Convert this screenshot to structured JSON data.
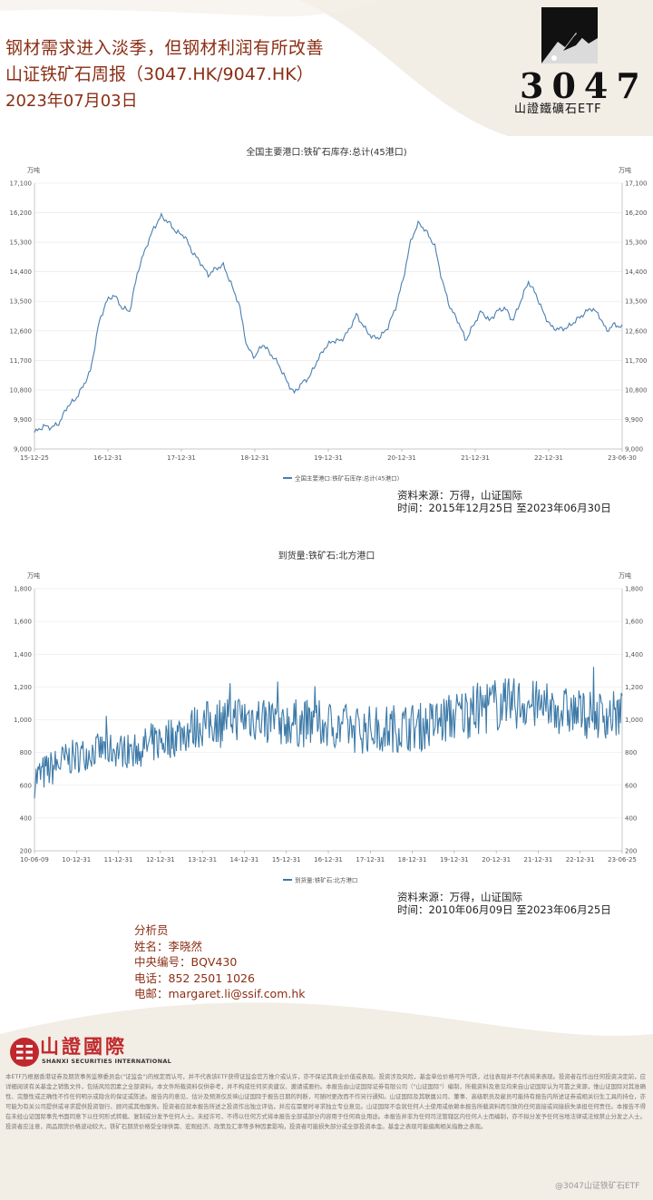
{
  "header": {
    "title": "钢材需求进入淡季，但钢材利润有所改善",
    "subtitle": "山证铁矿石周报（3047.HK/9047.HK）",
    "date": "2023年07月03日"
  },
  "logo": {
    "code": "3047",
    "name": "山證鐵礦石ETF"
  },
  "chart_data": [
    {
      "type": "line",
      "title": "全国主要港口:铁矿石库存:总计(45港口)",
      "unit_left": "万吨",
      "unit_right": "万吨",
      "ylim": [
        9000,
        17100
      ],
      "yticks": [
        "17,100",
        "16,200",
        "15,300",
        "14,400",
        "13,500",
        "12,600",
        "11,700",
        "10,800",
        "9,900",
        "9,000"
      ],
      "xticks": [
        "15-12-25",
        "16-12-31",
        "17-12-31",
        "18-12-31",
        "19-12-31",
        "20-12-31",
        "21-12-31",
        "22-12-31",
        "23-06-30"
      ],
      "legend": "全国主要港口:铁矿石库存:总计(45港口)",
      "series": [
        {
          "name": "全国主要港口:铁矿石库存:总计(45港口)",
          "color": "#4a7fb0",
          "x": [
            2015.98,
            2016.1,
            2016.2,
            2016.3,
            2016.4,
            2016.5,
            2016.6,
            2016.7,
            2016.8,
            2016.9,
            2017.0,
            2017.1,
            2017.2,
            2017.3,
            2017.4,
            2017.5,
            2017.6,
            2017.7,
            2017.8,
            2017.9,
            2018.0,
            2018.1,
            2018.2,
            2018.3,
            2018.4,
            2018.5,
            2018.6,
            2018.7,
            2018.8,
            2018.9,
            2019.0,
            2019.1,
            2019.2,
            2019.3,
            2019.4,
            2019.5,
            2019.6,
            2019.7,
            2019.8,
            2019.9,
            2020.0,
            2020.1,
            2020.2,
            2020.3,
            2020.4,
            2020.5,
            2020.6,
            2020.7,
            2020.8,
            2020.9,
            2021.0,
            2021.1,
            2021.2,
            2021.3,
            2021.4,
            2021.5,
            2021.6,
            2021.7,
            2021.8,
            2021.9,
            2022.0,
            2022.1,
            2022.2,
            2022.3,
            2022.4,
            2022.5,
            2022.6,
            2022.7,
            2022.8,
            2022.9,
            2023.0,
            2023.1,
            2023.2,
            2023.3,
            2023.4,
            2023.5
          ],
          "values": [
            9500,
            9700,
            9650,
            9800,
            10300,
            10500,
            10900,
            11400,
            12800,
            13500,
            13700,
            13300,
            13200,
            14400,
            15100,
            15700,
            16100,
            15900,
            15600,
            15500,
            15000,
            14700,
            14300,
            14500,
            14600,
            14000,
            13400,
            12100,
            11800,
            12200,
            11900,
            11600,
            11100,
            10700,
            11000,
            11200,
            11700,
            12100,
            12300,
            12300,
            12600,
            13100,
            12700,
            12400,
            12400,
            12700,
            13300,
            14200,
            15400,
            15900,
            15600,
            15200,
            14100,
            13300,
            12900,
            12300,
            12800,
            13200,
            12900,
            13200,
            13300,
            12900,
            13500,
            14100,
            13700,
            13100,
            12700,
            12650,
            12700,
            12900,
            13100,
            13300,
            13100,
            12600,
            12800,
            12700
          ]
        }
      ]
    },
    {
      "type": "line",
      "title": "到货量:铁矿石:北方港口",
      "unit_left": "万吨",
      "unit_right": "万吨",
      "ylim": [
        200,
        1800
      ],
      "yticks": [
        "1,800",
        "1,600",
        "1,400",
        "1,200",
        "1,000",
        "800",
        "600",
        "400",
        "200"
      ],
      "xticks": [
        "10-06-09",
        "10-12-31",
        "11-12-31",
        "12-12-31",
        "13-12-31",
        "14-12-31",
        "15-12-31",
        "16-12-31",
        "17-12-31",
        "18-12-31",
        "19-12-31",
        "20-12-31",
        "21-12-31",
        "22-12-31",
        "23-06-25"
      ],
      "legend": "到货量:铁矿石:北方港口",
      "series": [
        {
          "name": "到货量:铁矿石:北方港口",
          "color": "#3d7aa8",
          "x_start": 2010.44,
          "x_end": 2023.49,
          "base": [
            640,
            760,
            820,
            810,
            880,
            960,
            1020,
            1010,
            980,
            970,
            940,
            950,
            960,
            1030,
            1090,
            1100,
            1060,
            1030,
            1030
          ],
          "amplitude": [
            120,
            110,
            100,
            110,
            130,
            140,
            150,
            150,
            150,
            150,
            150,
            150,
            150,
            160,
            170,
            160,
            150,
            150,
            150
          ]
        }
      ]
    }
  ],
  "sources": [
    {
      "line1": "资料来源：万得，山证国际",
      "line2": "时间：2015年12月25日 至2023年06月30日"
    },
    {
      "line1": "资料来源：万得，山证国际",
      "line2": "时间：2010年06月09日 至2023年06月25日"
    }
  ],
  "analyst": {
    "heading": "分析员",
    "name": "姓名：李晓然",
    "ce_no": "中央编号：BQV430",
    "phone": "电话：852 2501 1026",
    "email": "电邮：margaret.li@ssif.com.hk"
  },
  "brand": {
    "name": "山證國際",
    "en": "SHANXI SECURITIES INTERNATIONAL"
  },
  "disclaimer": "本ETF乃根据香港证券及期货事务监察委员会(\"证监会\")的规定而认可，并不代表该ETF获得证监会官方推介或认许，亦不保证其商业价值或表现。投资涉及风险，基金单位价格可升可跌，过往表现并不代表将来表现。投资者在作出任何投资决定前，应详细阅读有关基金之销售文件，包括风险因素之全部资料。本文件所载资料仅供参考，并不构成任何买卖建议、邀请或要约。本报告由山证国际证券有限公司（\"山证国际\"）编制，所载资料及意见均来自山证国际认为可靠之来源，惟山证国际对其准确性、完整性或正确性不作任何明示或隐含的保证或陈述。报告内的意见、估计及预测仅反映山证国际于报告日期的判断，可随时更改而不作另行通知。山证国际及其联属公司、董事、高级职员及雇员可能持有报告内所述证券或相关衍生工具的持仓，亦可能为有关公司提供或寻求提供投资银行、顾问或其他服务。投资者应就本报告所述之投资作出独立评估，并应在需要时寻求独立专业意见。山证国际不会就任何人士使用或依赖本报告所载资料而引致的任何直接或间接损失承担任何责任。本报告不得在未经山证国际事先书面同意下以任何形式转载、复制或分发予任何人士。未经许可，不得以任何方式将本报告全部或部分内容用于任何商业用途。本报告并非为任何司法管辖区内任何人士而编制，亦不拟分发予任何当地法律或法规禁止分发之人士。投资者应注意，商品期货价格波动较大，铁矿石期货价格受全球供需、宏观经济、政策及汇率等多种因素影响，投资者可能损失部分或全部投资本金。基金之表现可能偏离相关指数之表现。",
  "watermark": "@3047山证铁矿石ETF"
}
